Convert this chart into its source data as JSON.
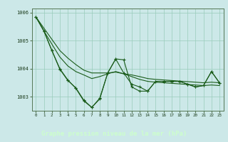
{
  "title": "Graphe pression niveau de la mer (hPa)",
  "bg_color": "#cce8e8",
  "plot_bg_color": "#cce8e8",
  "grid_color": "#99ccbb",
  "line_color": "#1a5c1a",
  "bottom_bar_color": "#336633",
  "bottom_text_color": "#ccffcc",
  "ylim": [
    1002.5,
    1006.15
  ],
  "xlim": [
    -0.5,
    23.5
  ],
  "yticks": [
    1003,
    1004,
    1005,
    1006
  ],
  "xticks": [
    0,
    1,
    2,
    3,
    4,
    5,
    6,
    7,
    8,
    9,
    10,
    11,
    12,
    13,
    14,
    15,
    16,
    17,
    18,
    19,
    20,
    21,
    22,
    23
  ],
  "series_main": [
    1005.85,
    1005.35,
    1004.65,
    1004.0,
    1003.6,
    1003.3,
    1002.85,
    1002.62,
    1002.95,
    1003.85,
    1004.35,
    1003.85,
    1003.45,
    1003.35,
    1003.2,
    1003.55,
    1003.55,
    1003.55,
    1003.55,
    1003.45,
    1003.35,
    1003.4,
    1003.9,
    1003.5
  ],
  "series_linear1": [
    1005.85,
    1005.42,
    1004.98,
    1004.55,
    1004.12,
    1003.85,
    1003.65,
    1003.52,
    1003.88,
    1003.88,
    1004.35,
    1004.0,
    1003.8,
    1003.65,
    1003.55,
    1003.55,
    1003.55,
    1003.55,
    1003.55,
    1003.45,
    1003.35,
    1003.4,
    1003.9,
    1003.5
  ],
  "series_linear2": [
    1005.85,
    1005.42,
    1004.98,
    1004.55,
    1004.12,
    1003.85,
    1003.65,
    1003.52,
    1003.88,
    1003.88,
    1004.35,
    1004.0,
    1003.8,
    1003.65,
    1003.55,
    1003.55,
    1003.55,
    1003.55,
    1003.55,
    1003.45,
    1003.35,
    1003.4,
    1003.9,
    1003.5
  ],
  "series_zigzag": [
    1005.85,
    1005.35,
    1004.65,
    1003.98,
    1003.58,
    1003.32,
    1002.88,
    1002.62,
    1002.92,
    1003.85,
    1004.35,
    1004.32,
    1003.35,
    1003.2,
    1003.2,
    1003.55,
    1003.55,
    1003.55,
    1003.55,
    1003.45,
    1003.35,
    1003.4,
    1003.9,
    1003.5
  ]
}
